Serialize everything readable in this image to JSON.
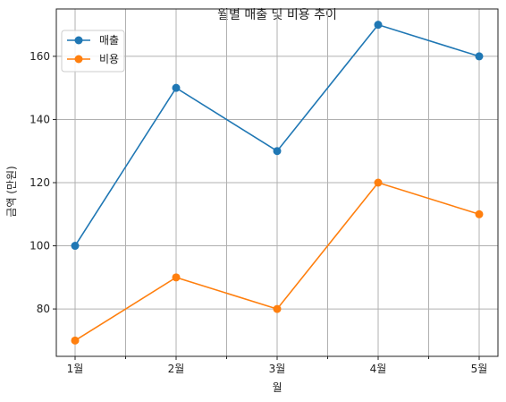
{
  "chart_data": {
    "type": "line",
    "title": "월별 매출 및 비용 추이",
    "xlabel": "월",
    "ylabel": "금액 (만원)",
    "categories": [
      "1월",
      "2월",
      "3월",
      "4월",
      "5월"
    ],
    "series": [
      {
        "name": "매출",
        "values": [
          100,
          150,
          130,
          170,
          160
        ],
        "color": "#1f77b4"
      },
      {
        "name": "비용",
        "values": [
          70,
          90,
          80,
          120,
          110
        ],
        "color": "#ff7f0e"
      }
    ],
    "ylim": [
      65,
      175
    ],
    "yticks": [
      80,
      100,
      120,
      140,
      160
    ],
    "grid": true,
    "legend": "top-left",
    "markers": "circle"
  }
}
